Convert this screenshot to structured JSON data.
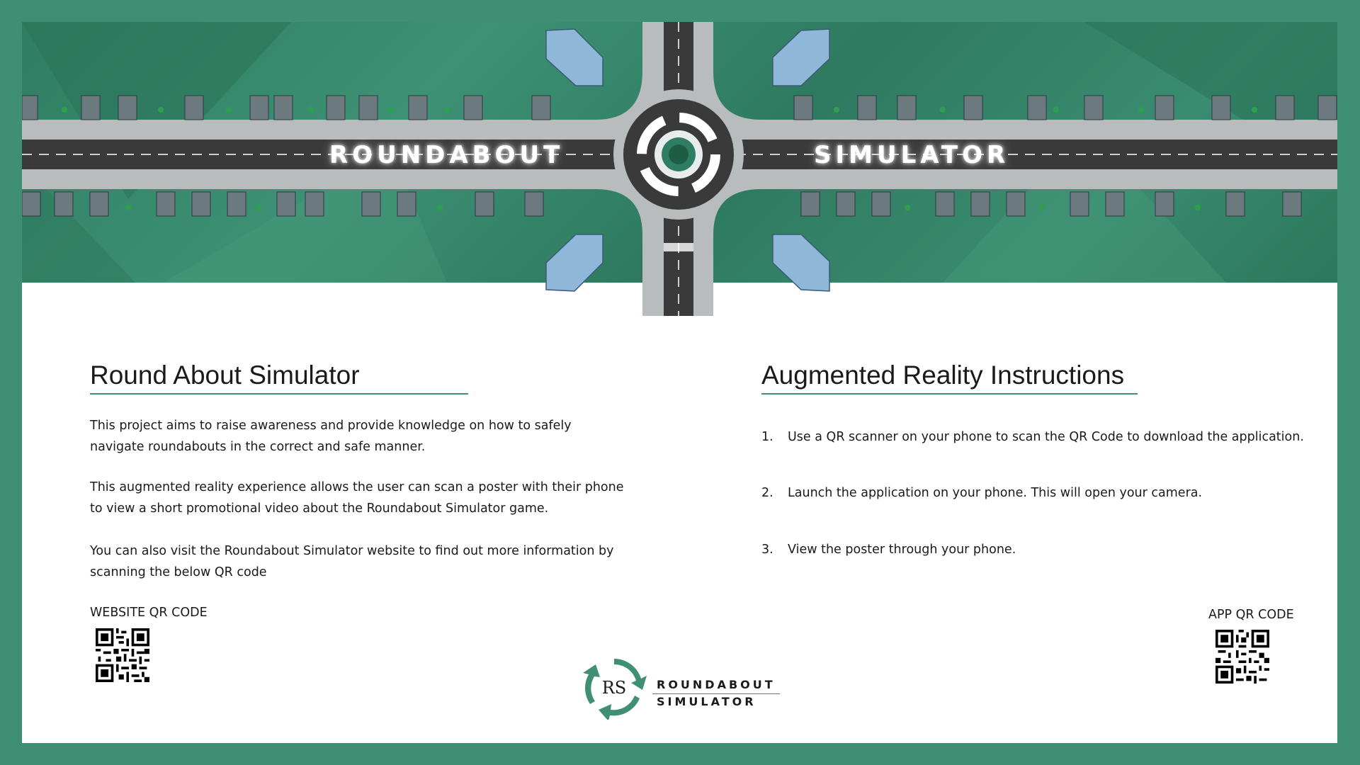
{
  "banner": {
    "title_left": "ROUNDABOUT",
    "title_right": "SIMULATOR"
  },
  "about": {
    "heading": "Round About Simulator",
    "paragraphs": [
      "This project aims to raise awareness and provide knowledge on how to safely navigate roundabouts in the correct and safe manner.",
      "This augmented reality experience allows the user can scan a poster with their phone to view a short promotional video about the Roundabout Simulator game.",
      "You can also visit the Roundabout Simulator website to find out more information by scanning the below QR code"
    ],
    "qr_label": "WEBSITE QR CODE"
  },
  "instructions": {
    "heading": "Augmented Reality Instructions",
    "steps": [
      {
        "num": "1.",
        "text": "Use a QR scanner on your phone to scan the QR Code to download the application."
      },
      {
        "num": "2.",
        "text": "Launch the application on your phone. This will open your camera."
      },
      {
        "num": "3.",
        "text": "View the poster through your phone."
      }
    ],
    "qr_label": "APP QR CODE"
  },
  "logo": {
    "monogram": "RS",
    "line1": "ROUNDABOUT",
    "line2": "SIMULATOR"
  },
  "colors": {
    "border": "#3f8f74",
    "accent": "#3f8f74",
    "road": "#3a3a3a"
  },
  "icons": [
    "roundabout-scene",
    "qr-code-icon",
    "recycle-arrows-logo"
  ]
}
